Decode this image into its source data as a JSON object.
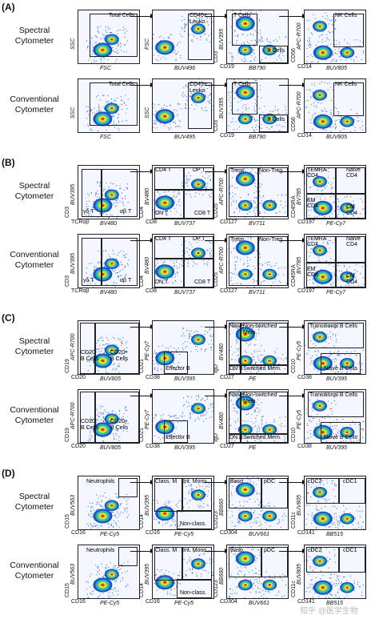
{
  "panels": [
    {
      "letter": "(A)",
      "rows": [
        {
          "label": [
            "Spectral",
            "Cytometer"
          ],
          "plots": [
            {
              "x": "FSC",
              "y": "SSC",
              "gates": [
                "Total Cells"
              ]
            },
            {
              "x": "BUV496",
              "y": "FSC",
              "gates": [
                "CD45+",
                "Leuko."
              ]
            },
            {
              "x": "BB790",
              "y": "BUV395",
              "xa": "CD19",
              "ya": "CD3",
              "gates": [
                "T Cells",
                "B Cells"
              ]
            },
            {
              "x": "BUV805",
              "y": "APC-R700",
              "xa": "CD14",
              "ya": "CD56",
              "gates": [
                "NK Cells"
              ]
            }
          ]
        },
        {
          "label": [
            "Conventional",
            "Cytometer"
          ],
          "plots": [
            {
              "x": "FSC",
              "y": "SSC",
              "gates": [
                "Total Cells"
              ]
            },
            {
              "x": "BUV495",
              "y": "SSC",
              "gates": [
                "CD45+",
                "Leuko."
              ]
            },
            {
              "x": "BB790",
              "y": "BUV395",
              "xa": "CD19",
              "ya": "CD3",
              "gates": [
                "T Cells",
                "B Cells"
              ]
            },
            {
              "x": "BUV805",
              "y": "APC-R700",
              "xa": "CD14",
              "ya": "CD56",
              "gates": [
                "NK Cells"
              ]
            }
          ]
        }
      ]
    },
    {
      "letter": "(B)",
      "rows": [
        {
          "label": [
            "Spectral",
            "Cytometer"
          ],
          "plots": [
            {
              "x": "BV480",
              "y": "BUV395",
              "xa": "TCRαβ",
              "ya": "CD3",
              "gates": [
                "γδ T",
                "αβ T"
              ]
            },
            {
              "x": "BUV737",
              "y": "BV480",
              "xa": "CD8",
              "ya": "CD4",
              "gates": [
                "CD4 T",
                "DP T",
                "DN T",
                "CD8 T"
              ]
            },
            {
              "x": "BV711",
              "y": "APC-R700",
              "xa": "CD127",
              "ya": "CD25",
              "gates": [
                "Tregs",
                "Non-Treg"
              ]
            },
            {
              "x": "PE-Cy7",
              "y": "BV785",
              "xa": "CD197",
              "ya": "CD45RA",
              "gates": [
                "TEMRA",
                "CD4",
                "Naive",
                "CD4",
                "EM",
                "CD4",
                "CM",
                "CD4"
              ]
            }
          ]
        },
        {
          "label": [
            "Conventional",
            "Cytometer"
          ],
          "plots": [
            {
              "x": "BV480",
              "y": "BUV395",
              "xa": "TCRαβ",
              "ya": "CD3",
              "gates": [
                "γδ T",
                "αβ T"
              ]
            },
            {
              "x": "BUV737",
              "y": "BV480",
              "xa": "CD8",
              "ya": "CD4",
              "gates": [
                "CD4 T",
                "DP T",
                "DN T",
                "CD8 T"
              ]
            },
            {
              "x": "BV711",
              "y": "APC-R700",
              "xa": "CD127",
              "ya": "CD25",
              "gates": [
                "Tregs",
                "Non-Treg"
              ]
            },
            {
              "x": "PE-Cy7",
              "y": "BV785",
              "xa": "CD197",
              "ya": "CD45RA",
              "gates": [
                "TEMRA",
                "CD4",
                "Naive",
                "CD4",
                "EM",
                "CD4",
                "CM",
                "CD4"
              ]
            }
          ]
        }
      ]
    },
    {
      "letter": "(C)",
      "rows": [
        {
          "label": [
            "Spectral",
            "Cytometer"
          ],
          "plots": [
            {
              "x": "BUV805",
              "y": "APC-R700",
              "xa": "CD20",
              "ya": "CD19",
              "gates": [
                "CD20-",
                "B Cells",
                "CD20+",
                "B Cells"
              ]
            },
            {
              "x": "BUV395",
              "y": "PE-Cy7",
              "xa": "CD38",
              "ya": "CD21",
              "gates": [
                "Effector B"
              ]
            },
            {
              "x": "PE",
              "y": "BV480",
              "xa": "CD27",
              "ya": "IgD",
              "gates": [
                "Naive",
                "Non-switched",
                "Mem.",
                "DN B",
                "Switched Mem."
              ]
            },
            {
              "x": "BUV395",
              "y": "PE-Cy5",
              "xa": "CD38",
              "ya": "CD10",
              "gates": [
                "Transitional B Cells",
                "Naive B Cells"
              ]
            }
          ]
        },
        {
          "label": [
            "Conventional",
            "Cytometer"
          ],
          "plots": [
            {
              "x": "BUV805",
              "y": "APC-R700",
              "xa": "CD20",
              "ya": "CD19",
              "gates": [
                "CD20-",
                "B Cells",
                "CD20+",
                "B Cells"
              ]
            },
            {
              "x": "BUV395",
              "y": "PE-Cy7",
              "xa": "CD38",
              "ya": "CD21",
              "gates": [
                "Effector B"
              ]
            },
            {
              "x": "PE",
              "y": "BV480",
              "xa": "CD27",
              "ya": "IgD",
              "gates": [
                "Naive",
                "Non-switched",
                "Mem.",
                "DN B",
                "Switched Mem."
              ]
            },
            {
              "x": "BUV395",
              "y": "PE-Cy5",
              "xa": "CD38",
              "ya": "CD10",
              "gates": [
                "Transitional B Cells",
                "Naive B Cells"
              ]
            }
          ]
        }
      ]
    },
    {
      "letter": "(D)",
      "rows": [
        {
          "label": [
            "Spectral",
            "Cytometer"
          ],
          "plots": [
            {
              "x": "PE-Cy5",
              "y": "BUV563",
              "xa": "CD16",
              "ya": "CD15",
              "gates": [
                "Neutrophils"
              ]
            },
            {
              "x": "PE-Cy5",
              "y": "BUV395",
              "xa": "CD16",
              "ya": "CD14",
              "gates": [
                "Class. M",
                "Int. Mono.",
                "Non-class."
              ]
            },
            {
              "x": "BUV661",
              "y": "BB660",
              "xa": "CD304",
              "ya": "CD123",
              "gates": [
                "Baso.",
                "pDC"
              ]
            },
            {
              "x": "BB515",
              "y": "BUV805",
              "xa": "CD141",
              "ya": "CD11c",
              "gates": [
                "cDC2",
                "cDC1"
              ]
            }
          ]
        },
        {
          "label": [
            "Conventional",
            "Cytometer"
          ],
          "plots": [
            {
              "x": "PE-Cy5",
              "y": "BUV563",
              "xa": "CD16",
              "ya": "CD15",
              "gates": [
                "Neutrophils"
              ]
            },
            {
              "x": "PE-Cy5",
              "y": "BUV395",
              "xa": "CD16",
              "ya": "CD14",
              "gates": [
                "Class. M",
                "Int. Mono.",
                "Non-class."
              ]
            },
            {
              "x": "BUV661",
              "y": "BB660",
              "xa": "CD304",
              "ya": "CD123",
              "gates": [
                "Baso.",
                "pDC"
              ]
            },
            {
              "x": "BB515",
              "y": "BUV805",
              "xa": "CD141",
              "ya": "CD11c",
              "gates": [
                "cDC2",
                "cDC1"
              ]
            }
          ]
        }
      ]
    }
  ],
  "watermark": "知乎 @医学生物"
}
